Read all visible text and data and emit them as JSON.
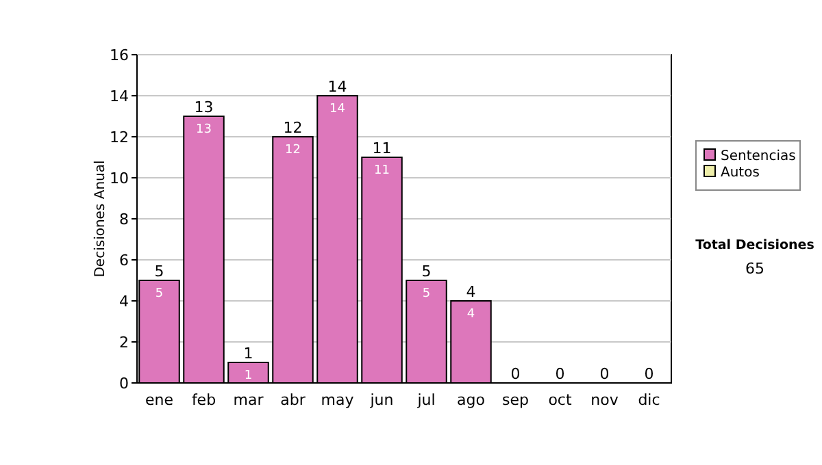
{
  "chart_data": {
    "type": "bar",
    "stacked": true,
    "ylabel": "Decisiones Anual",
    "categories": [
      "ene",
      "feb",
      "mar",
      "abr",
      "may",
      "jun",
      "jul",
      "ago",
      "sep",
      "oct",
      "nov",
      "dic"
    ],
    "series": [
      {
        "name": "Sentencias",
        "color": "#dd77bb",
        "values": [
          5,
          13,
          1,
          12,
          14,
          11,
          5,
          4,
          0,
          0,
          0,
          0
        ],
        "value_labels": [
          "5",
          "13",
          "1",
          "12",
          "14",
          "11",
          "5",
          "4",
          null,
          null,
          null,
          null
        ]
      },
      {
        "name": "Autos",
        "color": "#eeeeaa",
        "values": [
          0,
          0,
          0,
          0,
          0,
          0,
          0,
          0,
          0,
          0,
          0,
          0
        ]
      }
    ],
    "totals": [
      "5",
      "13",
      "1",
      "12",
      "14",
      "11",
      "5",
      "4",
      "0",
      "0",
      "0",
      "0"
    ],
    "ylim": [
      0,
      16
    ],
    "yticks": [
      0,
      2,
      4,
      6,
      8,
      10,
      12,
      14,
      16
    ],
    "grid": "y",
    "legend": "right",
    "annotations": [
      "Total Decisiones",
      "65"
    ]
  }
}
